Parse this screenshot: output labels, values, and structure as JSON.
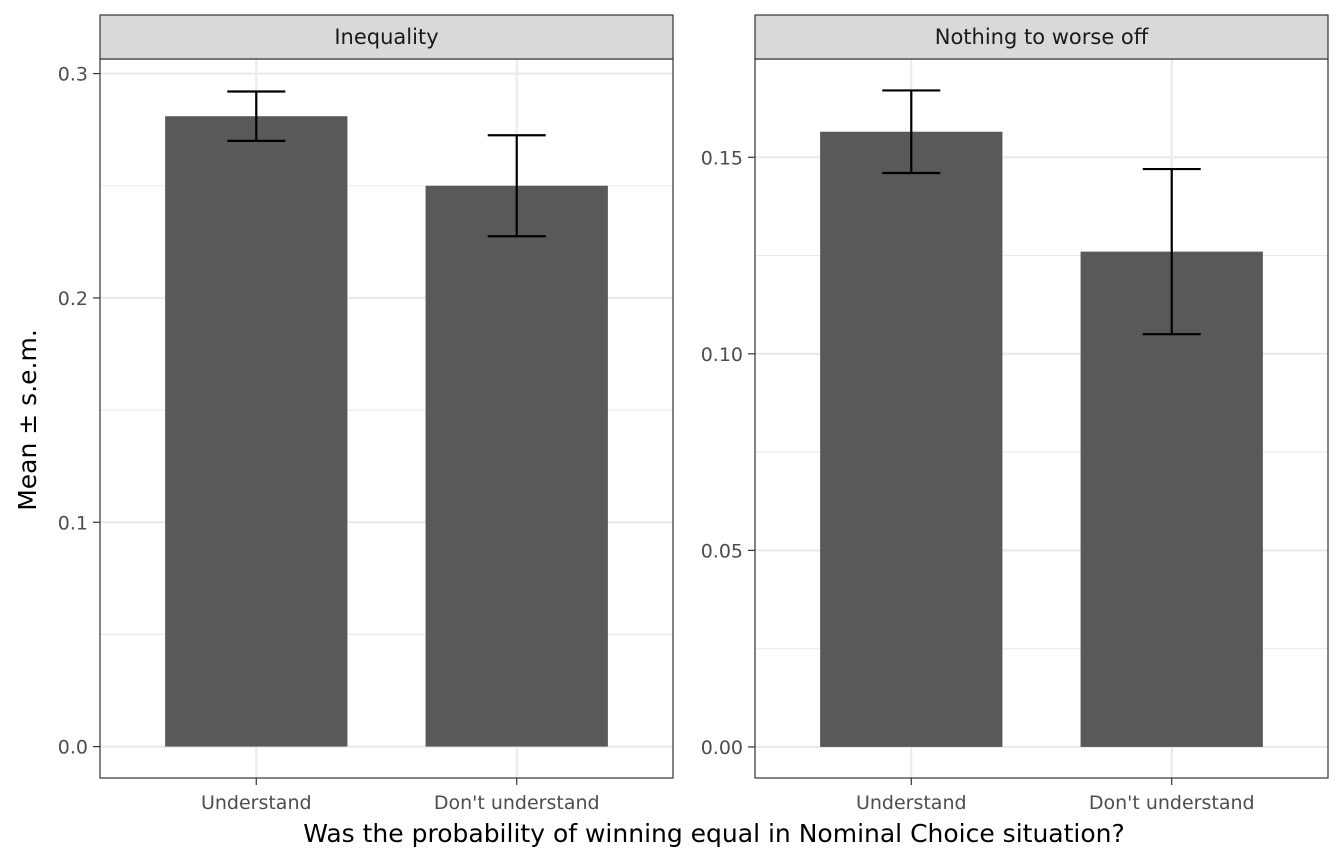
{
  "chart_data": {
    "type": "bar",
    "xlabel": "Was the probability of winning equal in Nominal Choice situation?",
    "ylabel": "Mean ± s.e.m.",
    "categories": [
      "Understand",
      "Don't understand"
    ],
    "grid": true,
    "panels": [
      {
        "title": "Inequality",
        "values": [
          0.281,
          0.25
        ],
        "errors": [
          0.011,
          0.0225
        ],
        "ylim": [
          -0.014,
          0.3065
        ],
        "yticks": [
          0.0,
          0.1,
          0.2,
          0.3
        ],
        "ytick_labels": [
          "0.0",
          "0.1",
          "0.2",
          "0.3"
        ]
      },
      {
        "title": "Nothing to worse off",
        "values": [
          0.1565,
          0.126
        ],
        "errors": [
          0.0105,
          0.021
        ],
        "ylim": [
          -0.0079,
          0.175
        ],
        "yticks": [
          0.0,
          0.05,
          0.1,
          0.15
        ],
        "ytick_labels": [
          "0.00",
          "0.05",
          "0.10",
          "0.15"
        ]
      }
    ],
    "colors": {
      "bar": "#595959",
      "error": "#000000",
      "grid": "#ebebeb",
      "strip": "#d9d9d9",
      "border": "#333333"
    }
  }
}
